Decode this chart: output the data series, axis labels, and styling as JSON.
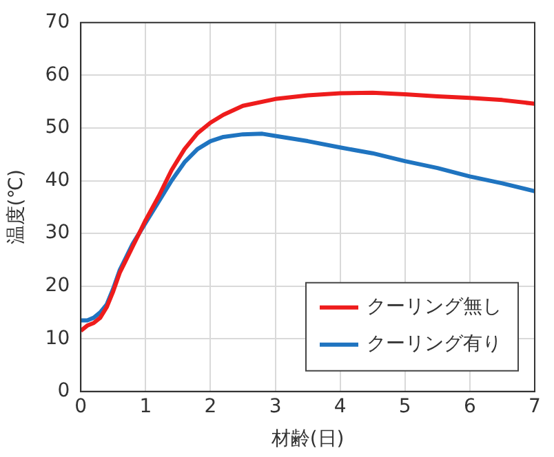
{
  "chart_data": {
    "type": "line",
    "xlabel": "材齢(日)",
    "ylabel": "温度(℃)",
    "xlim": [
      0,
      7
    ],
    "ylim": [
      0,
      70
    ],
    "xticks": [
      0,
      1,
      2,
      3,
      4,
      5,
      6,
      7
    ],
    "yticks": [
      0,
      10,
      20,
      30,
      40,
      50,
      60,
      70
    ],
    "grid": true,
    "legend": "bottom right",
    "marker": "none",
    "line_style": "solid",
    "series": [
      {
        "name": "クーリング無し",
        "color": "#ee1c1c",
        "x": [
          0,
          0.1,
          0.2,
          0.3,
          0.4,
          0.5,
          0.6,
          0.7,
          0.8,
          0.9,
          1.0,
          1.2,
          1.4,
          1.6,
          1.8,
          2.0,
          2.2,
          2.5,
          3.0,
          3.5,
          4.0,
          4.5,
          5.0,
          5.5,
          6.0,
          6.5,
          7.0
        ],
        "values": [
          11.5,
          12.5,
          13,
          14,
          16,
          19,
          22.5,
          25,
          27.5,
          30,
          32.5,
          37,
          42,
          46,
          49,
          51,
          52.5,
          54.2,
          55.5,
          56.2,
          56.6,
          56.7,
          56.4,
          56,
          55.7,
          55.3,
          54.6
        ]
      },
      {
        "name": "クーリング有り",
        "color": "#1f74c0",
        "x": [
          0,
          0.1,
          0.2,
          0.3,
          0.4,
          0.5,
          0.6,
          0.7,
          0.8,
          0.9,
          1.0,
          1.2,
          1.4,
          1.6,
          1.8,
          2.0,
          2.2,
          2.5,
          2.8,
          3.0,
          3.5,
          4.0,
          4.5,
          5.0,
          5.5,
          6.0,
          6.5,
          7.0
        ],
        "values": [
          13.5,
          13.5,
          14,
          15,
          16.5,
          19.5,
          23,
          25.5,
          28,
          30,
          32,
          36,
          40,
          43.5,
          46,
          47.5,
          48.3,
          48.8,
          48.9,
          48.5,
          47.5,
          46.3,
          45.2,
          43.7,
          42.4,
          40.8,
          39.5,
          38
        ]
      }
    ]
  }
}
